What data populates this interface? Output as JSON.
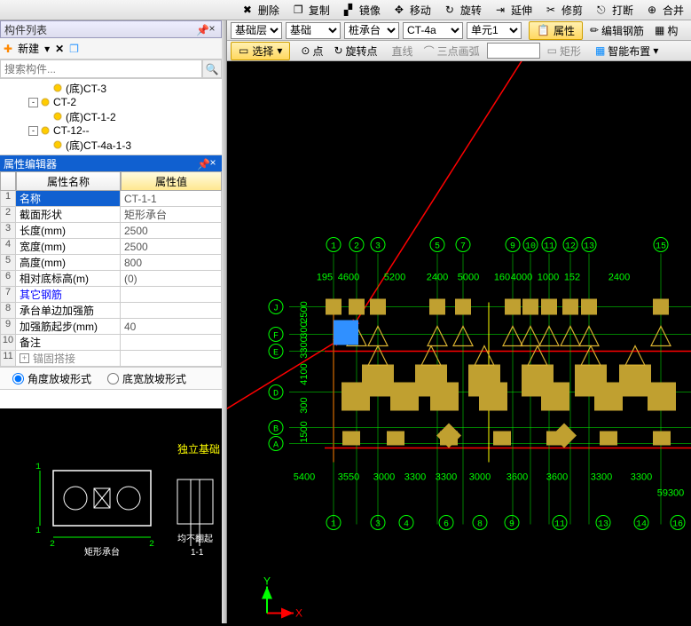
{
  "top_toolbar": {
    "delete": "删除",
    "copy2": "复制",
    "mirror": "镜像",
    "move": "移动",
    "rotate": "旋转",
    "extend": "延伸",
    "trim": "修剪",
    "break": "打断",
    "merge": "合并"
  },
  "left": {
    "list_title": "构件列表",
    "new_btn": "新建",
    "search_placeholder": "搜索构件...",
    "tree": [
      {
        "indent": 3,
        "exp": "",
        "label": "(底)CT-3"
      },
      {
        "indent": 2,
        "exp": "-",
        "label": "CT-2"
      },
      {
        "indent": 3,
        "exp": "",
        "label": "(底)CT-1-2"
      },
      {
        "indent": 2,
        "exp": "-",
        "label": "CT-12--"
      },
      {
        "indent": 3,
        "exp": "",
        "label": "(底)CT-4a-1-3"
      }
    ],
    "prop_title": "属性编辑器",
    "prop_head_name": "属性名称",
    "prop_head_val": "属性值",
    "props": [
      {
        "idx": "1",
        "name": "名称",
        "val": "CT-1-1",
        "sel": true
      },
      {
        "idx": "2",
        "name": "截面形状",
        "val": "矩形承台"
      },
      {
        "idx": "3",
        "name": "长度(mm)",
        "val": "2500"
      },
      {
        "idx": "4",
        "name": "宽度(mm)",
        "val": "2500"
      },
      {
        "idx": "5",
        "name": "高度(mm)",
        "val": "800"
      },
      {
        "idx": "6",
        "name": "相对底标高(m)",
        "val": "(0)"
      },
      {
        "idx": "7",
        "name": "其它钢筋",
        "val": "",
        "blue": true
      },
      {
        "idx": "8",
        "name": "承台单边加强筋",
        "val": ""
      },
      {
        "idx": "9",
        "name": "加强筋起步(mm)",
        "val": "40"
      },
      {
        "idx": "10",
        "name": "备注",
        "val": ""
      },
      {
        "idx": "11",
        "name": "锚固搭接",
        "val": "",
        "gray": true,
        "plus": true
      }
    ],
    "radio1": "角度放坡形式",
    "radio2": "底宽放坡形式",
    "preview_label": "矩形承台",
    "section_label": "1-1",
    "section_note": "均不翻起"
  },
  "right": {
    "tb1": {
      "dd1": "基础层",
      "dd2": "基础",
      "dd3": "桩承台",
      "dd4": "CT-4a",
      "dd5": "单元1",
      "attr": "属性",
      "editrebar": "编辑钢筋",
      "comp": "构"
    },
    "tb2": {
      "select": "选择",
      "origin": "点",
      "rotpt": "旋转点",
      "line": "直线",
      "arc3": "三点画弧",
      "rect": "矩形",
      "smart": "智能布置"
    },
    "grid": {
      "top_bubbles": [
        "1",
        "2",
        "3",
        "5",
        "7",
        "9",
        "10",
        "11",
        "12",
        "13",
        "15"
      ],
      "top_bubble_x": [
        378,
        404,
        428,
        495,
        524,
        580,
        600,
        621,
        645,
        666,
        747
      ],
      "bot_bubbles": [
        "1",
        "3",
        "4",
        "6",
        "8",
        "9",
        "11",
        "13",
        "14",
        "16"
      ],
      "bot_bubble_x": [
        378,
        428,
        460,
        505,
        543,
        579,
        633,
        682,
        725,
        766
      ],
      "left_bubbles": [
        "J",
        "F",
        "E",
        "D",
        "B",
        "A"
      ],
      "left_bubble_y": [
        334,
        365,
        384,
        430,
        470,
        488
      ],
      "h_dims_top": [
        "195",
        "4600",
        "5200",
        "2400",
        "5000",
        "160",
        "4000",
        "1000",
        "152",
        "2400"
      ],
      "h_dims_top_x": [
        368,
        395,
        447,
        495,
        530,
        568,
        590,
        620,
        647,
        700
      ],
      "h_dims_bot": [
        "5400",
        "3550",
        "3000",
        "3300",
        "3300",
        "3000",
        "3600",
        "3600",
        "3300",
        "3300"
      ],
      "h_dims_bot_x": [
        345,
        395,
        435,
        470,
        505,
        543,
        585,
        630,
        680,
        725
      ],
      "total_dim": "59300",
      "v_dims": [
        "2500",
        "300",
        "3300",
        "4100",
        "300",
        "1500"
      ],
      "v_dims_y": [
        340,
        360,
        380,
        410,
        445,
        475
      ],
      "color_grid": "#00ff00",
      "color_red": "#ff0000",
      "color_pile": "#c0a030",
      "color_tri": "#d8b030",
      "color_highlight": "#3090ff"
    },
    "axes": {
      "x": "X",
      "y": "Y"
    }
  }
}
